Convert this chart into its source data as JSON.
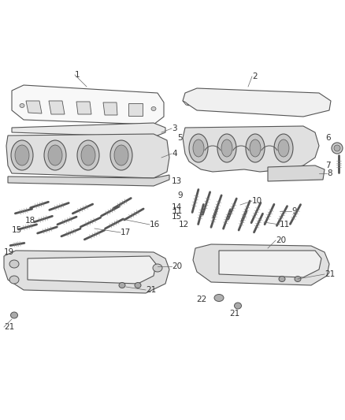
{
  "bg_color": "#ffffff",
  "line_color": "#555555",
  "text_color": "#333333",
  "font_size": 7.5,
  "label_line_color": "#666666",
  "part_fill": "#f0f0f0",
  "part_edge": "#555555",
  "shadow_fill": "#d0d0d0"
}
